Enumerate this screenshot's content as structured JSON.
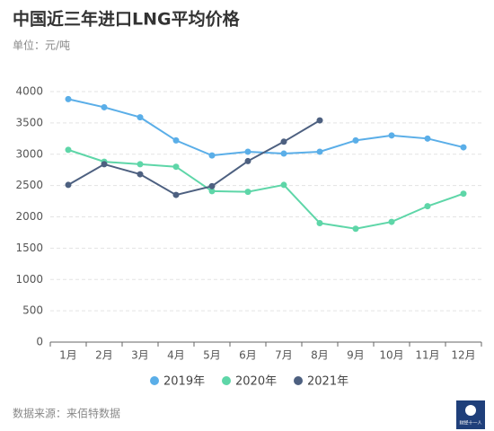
{
  "chart_data": {
    "type": "line",
    "title": "中国近三年进口LNG平均价格",
    "subtitle": "单位：元/吨",
    "source": "数据来源：来佰特数据",
    "logo_text": "财经十一人",
    "categories": [
      "1月",
      "2月",
      "3月",
      "4月",
      "5月",
      "6月",
      "7月",
      "8月",
      "9月",
      "10月",
      "11月",
      "12月"
    ],
    "series": [
      {
        "name": "2019年",
        "color": "#5aaee8",
        "values": [
          3880,
          3750,
          3590,
          3220,
          2980,
          3040,
          3010,
          3040,
          3220,
          3300,
          3250,
          3110
        ]
      },
      {
        "name": "2020年",
        "color": "#5ed6a8",
        "values": [
          3070,
          2880,
          2840,
          2800,
          2410,
          2400,
          2510,
          1900,
          1810,
          1920,
          2170,
          2370
        ]
      },
      {
        "name": "2021年",
        "color": "#4d6080",
        "values": [
          2510,
          2840,
          2680,
          2350,
          2490,
          2890,
          3200,
          3540,
          null,
          null,
          null,
          null
        ]
      }
    ],
    "ylim": [
      0,
      4000
    ],
    "yticks": [
      0,
      500,
      1000,
      1500,
      2000,
      2500,
      3000,
      3500,
      4000
    ],
    "grid": true
  }
}
